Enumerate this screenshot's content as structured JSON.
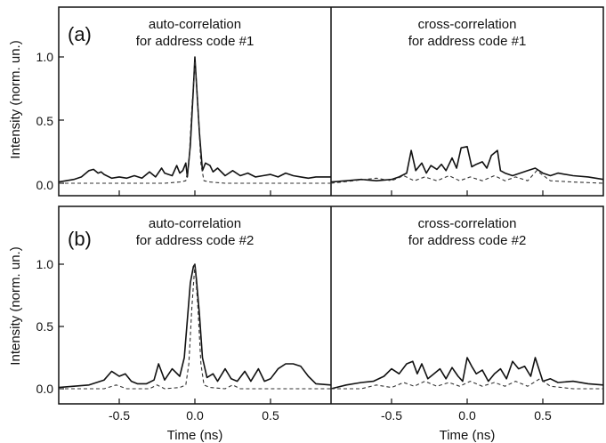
{
  "figure": {
    "ylabel": "Intensity (norm. un.)",
    "xlabel": "Time (ns)",
    "rows": [
      {
        "label": "(a)",
        "left_title": [
          "auto-correlation",
          "for address code #1"
        ],
        "right_title": [
          "cross-correlation",
          "for address code #1"
        ]
      },
      {
        "label": "(b)",
        "left_title": [
          "auto-correlation",
          "for address code #2"
        ],
        "right_title": [
          "cross-correlation",
          "for address code #2"
        ]
      }
    ],
    "yticks": [
      "0.0",
      "0.5",
      "1.0"
    ],
    "xticks_left": [
      "-0.5",
      "0.0",
      "0.5"
    ],
    "xticks_right": [
      "-0.5",
      "0.0",
      "0.5"
    ],
    "colors": {
      "axis": "#111111",
      "solid": "#111111",
      "dashed": "#333333"
    }
  },
  "chart_data": [
    {
      "type": "line",
      "panel": "a-left",
      "title": "auto-correlation for address code #1",
      "xlabel": "Time (ns)",
      "ylabel": "Intensity (norm. un.)",
      "xlim": [
        -0.9,
        0.9
      ],
      "ylim": [
        -0.05,
        1.4
      ],
      "series": [
        {
          "style": "solid",
          "x": [
            -0.9,
            -0.8,
            -0.75,
            -0.7,
            -0.67,
            -0.64,
            -0.62,
            -0.6,
            -0.55,
            -0.5,
            -0.45,
            -0.4,
            -0.35,
            -0.3,
            -0.26,
            -0.22,
            -0.2,
            -0.15,
            -0.12,
            -0.1,
            -0.08,
            -0.06,
            -0.05,
            -0.03,
            -0.01,
            0.0,
            0.01,
            0.03,
            0.05,
            0.07,
            0.1,
            0.12,
            0.15,
            0.2,
            0.25,
            0.3,
            0.35,
            0.4,
            0.45,
            0.5,
            0.55,
            0.6,
            0.65,
            0.7,
            0.75,
            0.8,
            0.9
          ],
          "y": [
            0.01,
            0.03,
            0.05,
            0.1,
            0.11,
            0.08,
            0.09,
            0.07,
            0.04,
            0.05,
            0.04,
            0.06,
            0.04,
            0.09,
            0.05,
            0.12,
            0.08,
            0.06,
            0.14,
            0.08,
            0.1,
            0.16,
            0.05,
            0.3,
            0.75,
            1.0,
            0.8,
            0.4,
            0.1,
            0.16,
            0.14,
            0.09,
            0.12,
            0.06,
            0.1,
            0.06,
            0.08,
            0.05,
            0.06,
            0.07,
            0.05,
            0.08,
            0.06,
            0.05,
            0.04,
            0.05,
            0.05
          ]
        },
        {
          "style": "dashed",
          "x": [
            -0.9,
            -0.5,
            -0.2,
            -0.1,
            -0.06,
            -0.04,
            -0.02,
            0.0,
            0.02,
            0.04,
            0.06,
            0.1,
            0.2,
            0.5,
            0.9
          ],
          "y": [
            0.0,
            0.0,
            0.0,
            0.01,
            0.02,
            0.15,
            0.6,
            0.97,
            0.6,
            0.15,
            0.02,
            0.01,
            0.0,
            0.0,
            0.0
          ]
        }
      ]
    },
    {
      "type": "line",
      "panel": "a-right",
      "title": "cross-correlation for address code #1",
      "xlabel": "Time (ns)",
      "ylabel": "Intensity (norm. un.)",
      "xlim": [
        -0.9,
        0.9
      ],
      "ylim": [
        -0.05,
        1.4
      ],
      "series": [
        {
          "style": "solid",
          "x": [
            -0.9,
            -0.8,
            -0.7,
            -0.6,
            -0.5,
            -0.45,
            -0.4,
            -0.37,
            -0.34,
            -0.3,
            -0.27,
            -0.24,
            -0.2,
            -0.17,
            -0.14,
            -0.1,
            -0.07,
            -0.04,
            0.0,
            0.03,
            0.06,
            0.1,
            0.13,
            0.16,
            0.2,
            0.22,
            0.25,
            0.3,
            0.35,
            0.4,
            0.45,
            0.5,
            0.55,
            0.6,
            0.7,
            0.8,
            0.9
          ],
          "y": [
            0.01,
            0.02,
            0.03,
            0.02,
            0.03,
            0.05,
            0.08,
            0.26,
            0.1,
            0.16,
            0.08,
            0.14,
            0.11,
            0.15,
            0.1,
            0.2,
            0.12,
            0.28,
            0.29,
            0.13,
            0.15,
            0.17,
            0.12,
            0.22,
            0.26,
            0.1,
            0.08,
            0.06,
            0.08,
            0.1,
            0.12,
            0.08,
            0.06,
            0.08,
            0.06,
            0.05,
            0.03
          ]
        },
        {
          "style": "dashed",
          "x": [
            -0.9,
            -0.75,
            -0.6,
            -0.5,
            -0.42,
            -0.35,
            -0.28,
            -0.2,
            -0.12,
            -0.05,
            0.02,
            0.1,
            0.18,
            0.25,
            0.32,
            0.4,
            0.46,
            0.55,
            0.7,
            0.9
          ],
          "y": [
            0.0,
            0.02,
            0.04,
            0.02,
            0.06,
            0.02,
            0.05,
            0.02,
            0.06,
            0.02,
            0.05,
            0.02,
            0.06,
            0.02,
            0.05,
            0.02,
            0.1,
            0.02,
            0.01,
            0.0
          ]
        }
      ]
    },
    {
      "type": "line",
      "panel": "b-left",
      "title": "auto-correlation for address code #2",
      "xlabel": "Time (ns)",
      "ylabel": "Intensity (norm. un.)",
      "xlim": [
        -0.9,
        0.9
      ],
      "ylim": [
        -0.05,
        1.4
      ],
      "series": [
        {
          "style": "solid",
          "x": [
            -0.9,
            -0.8,
            -0.7,
            -0.6,
            -0.55,
            -0.5,
            -0.46,
            -0.42,
            -0.38,
            -0.32,
            -0.27,
            -0.24,
            -0.2,
            -0.15,
            -0.1,
            -0.07,
            -0.05,
            -0.03,
            -0.01,
            0.0,
            0.01,
            0.03,
            0.05,
            0.08,
            0.12,
            0.15,
            0.2,
            0.24,
            0.28,
            0.33,
            0.37,
            0.42,
            0.46,
            0.5,
            0.55,
            0.6,
            0.65,
            0.7,
            0.75,
            0.8,
            0.9
          ],
          "y": [
            0.01,
            0.02,
            0.03,
            0.07,
            0.14,
            0.1,
            0.12,
            0.06,
            0.04,
            0.04,
            0.07,
            0.2,
            0.07,
            0.16,
            0.1,
            0.25,
            0.55,
            0.85,
            0.98,
            1.0,
            0.88,
            0.6,
            0.25,
            0.09,
            0.12,
            0.06,
            0.16,
            0.08,
            0.06,
            0.14,
            0.06,
            0.16,
            0.06,
            0.08,
            0.16,
            0.2,
            0.2,
            0.18,
            0.1,
            0.04,
            0.03
          ]
        },
        {
          "style": "dashed",
          "x": [
            -0.9,
            -0.6,
            -0.52,
            -0.45,
            -0.3,
            -0.25,
            -0.2,
            -0.1,
            -0.06,
            -0.04,
            -0.02,
            0.0,
            0.02,
            0.04,
            0.06,
            0.1,
            0.2,
            0.25,
            0.3,
            0.45,
            0.6,
            0.9
          ],
          "y": [
            0.0,
            0.0,
            0.03,
            0.0,
            0.0,
            0.03,
            0.0,
            0.01,
            0.03,
            0.2,
            0.65,
            1.0,
            0.65,
            0.2,
            0.03,
            0.01,
            0.0,
            0.03,
            0.0,
            0.0,
            0.0,
            0.0
          ]
        }
      ]
    },
    {
      "type": "line",
      "panel": "b-right",
      "title": "cross-correlation for address code #2",
      "xlabel": "Time (ns)",
      "ylabel": "Intensity (norm. un.)",
      "xlim": [
        -0.9,
        0.9
      ],
      "ylim": [
        -0.05,
        1.4
      ],
      "series": [
        {
          "style": "solid",
          "x": [
            -0.9,
            -0.8,
            -0.7,
            -0.62,
            -0.55,
            -0.5,
            -0.45,
            -0.4,
            -0.36,
            -0.33,
            -0.3,
            -0.26,
            -0.22,
            -0.18,
            -0.14,
            -0.1,
            -0.06,
            -0.03,
            0.0,
            0.03,
            0.06,
            0.1,
            0.14,
            0.18,
            0.22,
            0.26,
            0.3,
            0.34,
            0.38,
            0.42,
            0.45,
            0.5,
            0.55,
            0.6,
            0.7,
            0.8,
            0.9
          ],
          "y": [
            0.0,
            0.03,
            0.05,
            0.06,
            0.1,
            0.16,
            0.12,
            0.2,
            0.22,
            0.12,
            0.2,
            0.08,
            0.12,
            0.16,
            0.08,
            0.17,
            0.1,
            0.06,
            0.25,
            0.18,
            0.12,
            0.15,
            0.06,
            0.12,
            0.16,
            0.08,
            0.22,
            0.16,
            0.18,
            0.1,
            0.25,
            0.06,
            0.08,
            0.05,
            0.06,
            0.04,
            0.03
          ]
        },
        {
          "style": "dashed",
          "x": [
            -0.9,
            -0.7,
            -0.6,
            -0.5,
            -0.42,
            -0.35,
            -0.28,
            -0.2,
            -0.12,
            -0.05,
            0.02,
            0.1,
            0.18,
            0.25,
            0.32,
            0.4,
            0.48,
            0.55,
            0.7,
            0.9
          ],
          "y": [
            0.0,
            0.0,
            0.03,
            0.01,
            0.05,
            0.02,
            0.06,
            0.02,
            0.05,
            0.02,
            0.06,
            0.02,
            0.05,
            0.02,
            0.06,
            0.02,
            0.08,
            0.02,
            0.0,
            0.0
          ]
        }
      ]
    }
  ]
}
